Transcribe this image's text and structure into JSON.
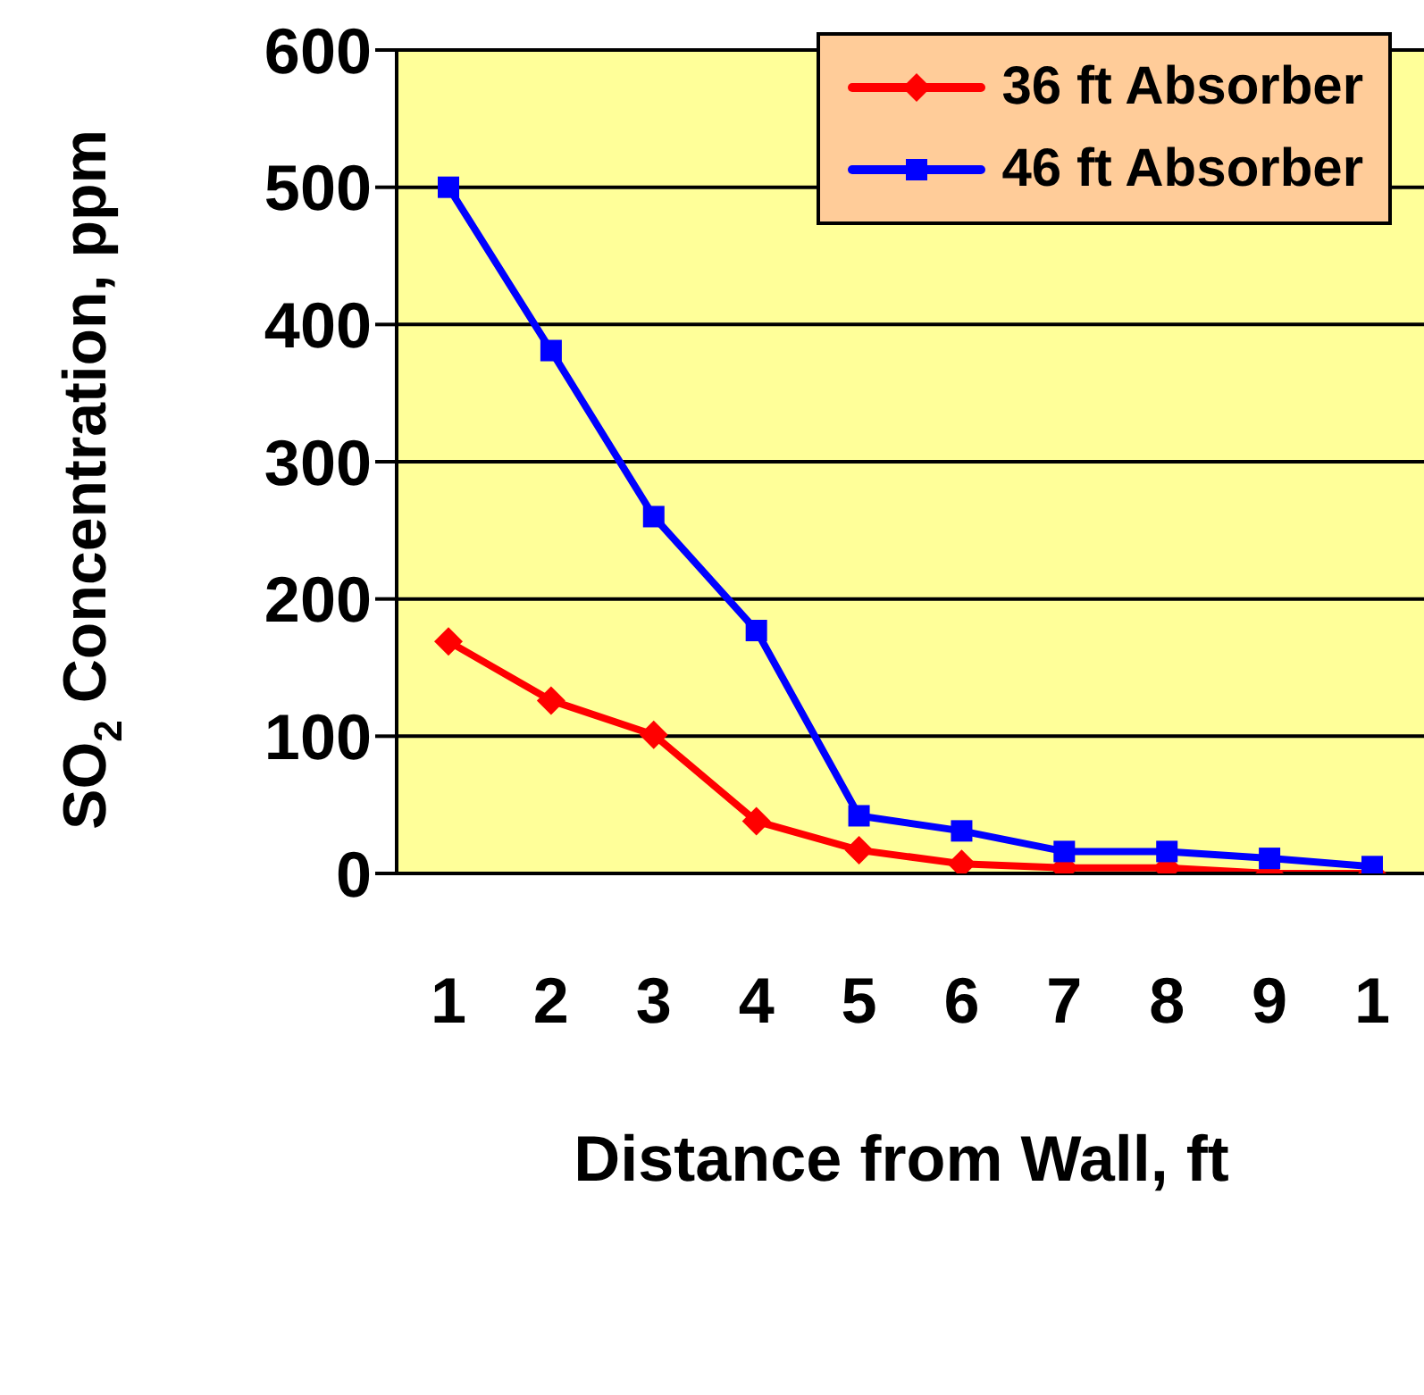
{
  "chart_data": {
    "type": "line",
    "xlabel": "Distance from Wall, ft",
    "ylabel": "SO$_{2}$ Concentration, ppm",
    "categories": [
      "1",
      "2",
      "3",
      "4",
      "5",
      "6",
      "7",
      "8",
      "9",
      "1"
    ],
    "series": [
      {
        "name": "36 ft Absorber",
        "color": "#ff0000",
        "marker": "diamond",
        "values": [
          169,
          126,
          101,
          38,
          17,
          7,
          4,
          4,
          0,
          0
        ]
      },
      {
        "name": "46 ft Absorber",
        "color": "#0000ff",
        "marker": "square",
        "values": [
          500,
          381,
          260,
          177,
          42,
          31,
          16,
          16,
          11,
          5
        ]
      }
    ],
    "ylim": [
      0,
      600
    ],
    "yticks": [
      0,
      100,
      200,
      300,
      400,
      500,
      600
    ],
    "grid": "y",
    "legend": "top right"
  }
}
